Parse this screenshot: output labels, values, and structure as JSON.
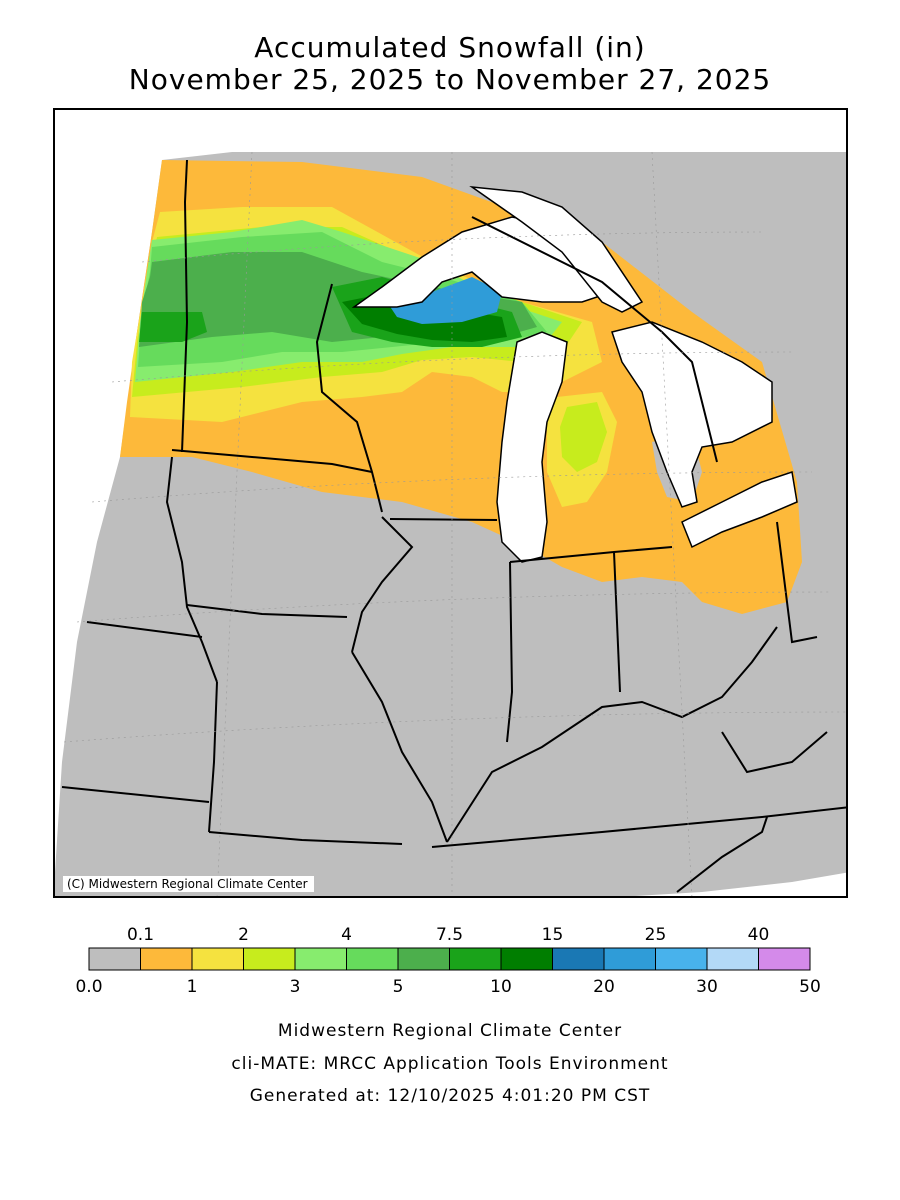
{
  "title_line1": "Accumulated Snowfall (in)",
  "title_line2": "November 25, 2025 to November 27, 2025",
  "copyright": "(C) Midwestern Regional Climate Center",
  "legend": {
    "top_labels": [
      "0.1",
      "2",
      "4",
      "7.5",
      "15",
      "25",
      "40"
    ],
    "bottom_labels": [
      "0.0",
      "1",
      "3",
      "5",
      "10",
      "20",
      "30",
      "50"
    ],
    "colors": [
      "#bebebe",
      "#fdb93a",
      "#f5e23f",
      "#c7ec1d",
      "#87ec6e",
      "#66db5c",
      "#4caf4c",
      "#1aa31a",
      "#007e00",
      "#1a78b4",
      "#2f9cd8",
      "#48b2ec",
      "#b3d9f7",
      "#d48aea"
    ]
  },
  "footer": {
    "line1": "Midwestern Regional Climate Center",
    "line2": "cli-MATE: MRCC Application Tools Environment",
    "line3": "Generated at: 12/10/2025 4:01:20 PM CST"
  }
}
